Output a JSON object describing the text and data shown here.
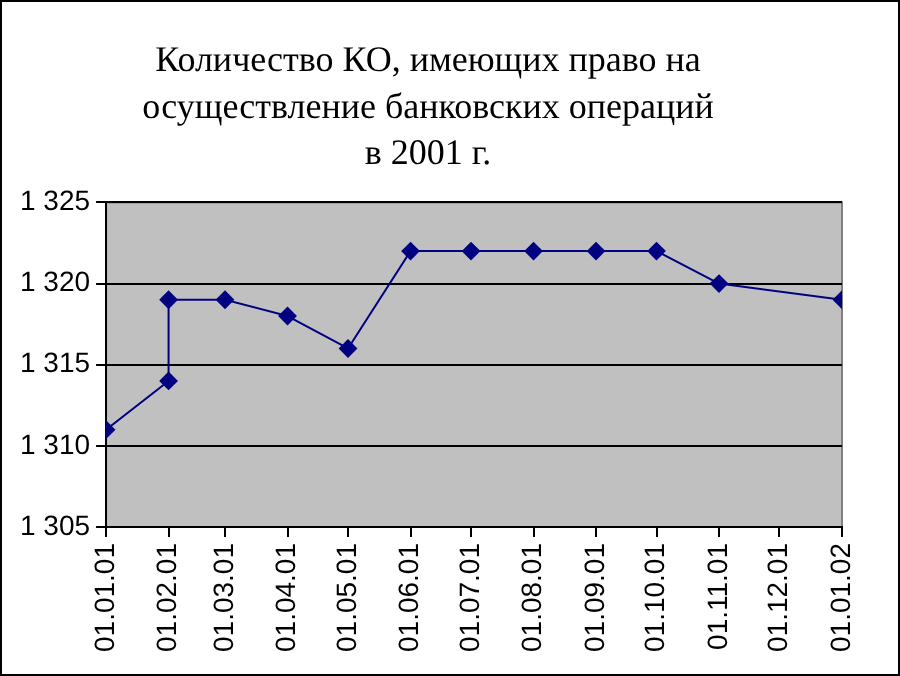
{
  "chart_data": {
    "type": "line",
    "title": "Количество КО, имеющих право на\nосуществление банковских операций\nв 2001 г.",
    "x": [
      "2001-01-01",
      "2001-02-01",
      "2001-02-01",
      "2001-03-01",
      "2001-04-01",
      "2001-05-01",
      "2001-06-01",
      "2001-07-01",
      "2001-08-01",
      "2001-09-01",
      "2001-10-01",
      "2001-11-01",
      "2002-01-01"
    ],
    "values": [
      1311,
      1314,
      1319,
      1319,
      1318,
      1316,
      1322,
      1322,
      1322,
      1322,
      1322,
      1320,
      1319
    ],
    "color": "#000080",
    "marker": "diamond",
    "line_style": "solid",
    "xlim": [
      "2001-01-01",
      "2002-01-01"
    ],
    "xticks": [
      {
        "value": "2001-01-01",
        "label": "01.01.01"
      },
      {
        "value": "2001-02-01",
        "label": "01.02.01"
      },
      {
        "value": "2001-03-01",
        "label": "01.03.01"
      },
      {
        "value": "2001-04-01",
        "label": "01.04.01"
      },
      {
        "value": "2001-05-01",
        "label": "01.05.01"
      },
      {
        "value": "2001-06-01",
        "label": "01.06.01"
      },
      {
        "value": "2001-07-01",
        "label": "01.07.01"
      },
      {
        "value": "2001-08-01",
        "label": "01.08.01"
      },
      {
        "value": "2001-09-01",
        "label": "01.09.01"
      },
      {
        "value": "2001-10-01",
        "label": "01.10.01"
      },
      {
        "value": "2001-11-01",
        "label": "01.11.01"
      },
      {
        "value": "2001-12-01",
        "label": "01.12.01"
      },
      {
        "value": "2002-01-01",
        "label": "01.01.02"
      }
    ],
    "ylim": [
      1305,
      1325
    ],
    "yticks": [
      {
        "value": 1305,
        "label": "1 305"
      },
      {
        "value": 1310,
        "label": "1 310"
      },
      {
        "value": 1315,
        "label": "1 315"
      },
      {
        "value": 1320,
        "label": "1 320"
      },
      {
        "value": 1325,
        "label": "1 325"
      }
    ],
    "grid": "y",
    "legend": false
  }
}
